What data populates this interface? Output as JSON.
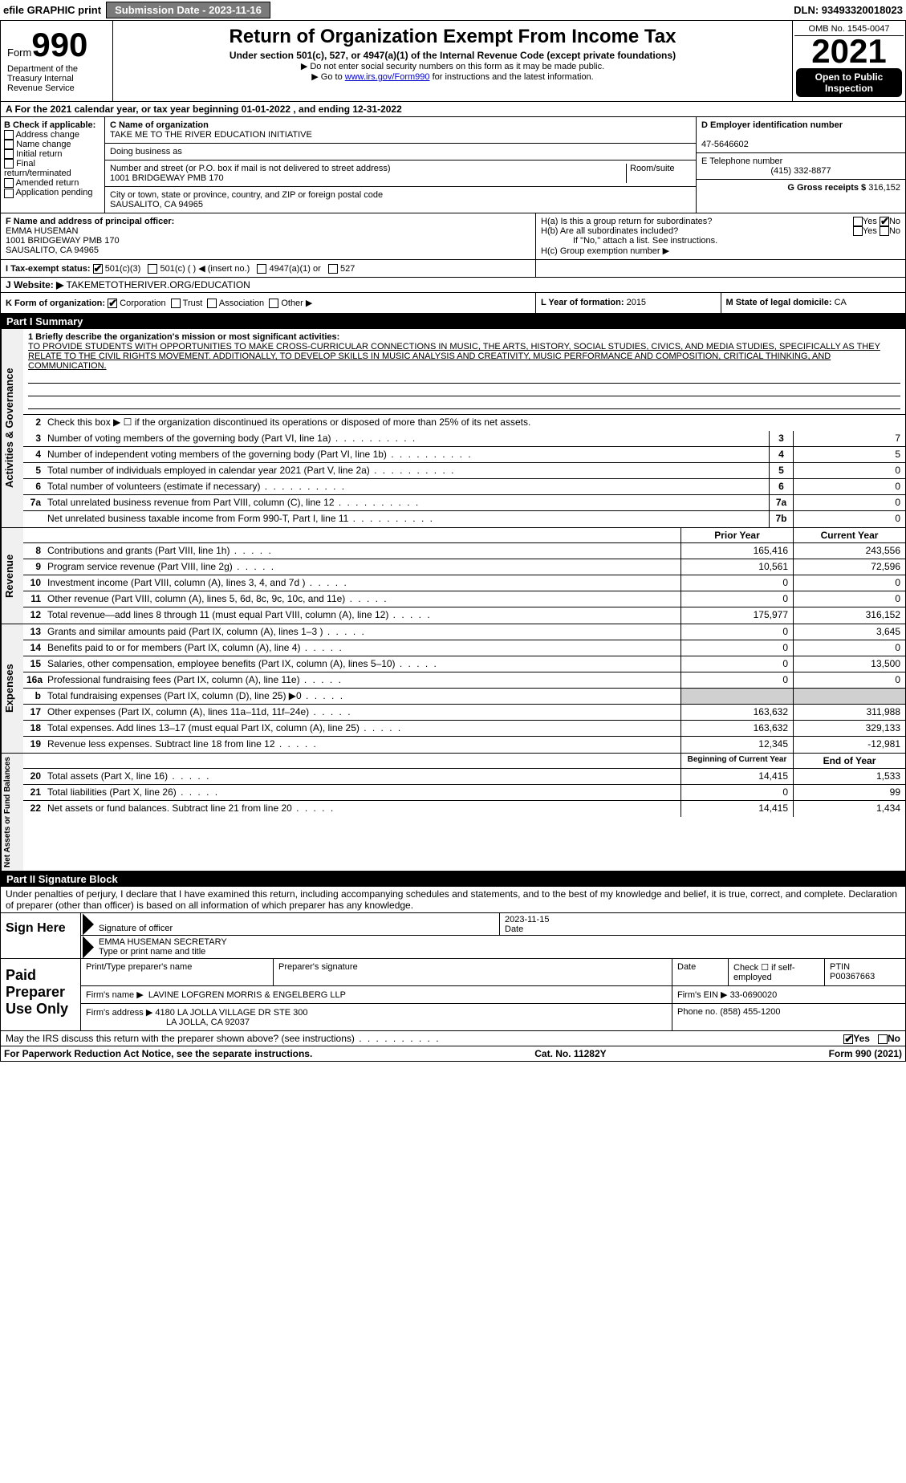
{
  "topbar": {
    "efile": "efile GRAPHIC print",
    "submission": "Submission Date - 2023-11-16",
    "dln": "DLN: 93493320018023"
  },
  "header": {
    "form_word": "Form",
    "form_num": "990",
    "title": "Return of Organization Exempt From Income Tax",
    "subtitle": "Under section 501(c), 527, or 4947(a)(1) of the Internal Revenue Code (except private foundations)",
    "note1": "▶ Do not enter social security numbers on this form as it may be made public.",
    "note2_pre": "▶ Go to ",
    "note2_link": "www.irs.gov/Form990",
    "note2_post": " for instructions and the latest information.",
    "dept": "Department of the Treasury\nInternal Revenue Service",
    "omb": "OMB No. 1545-0047",
    "year": "2021",
    "open": "Open to Public Inspection"
  },
  "rowA": "A For the 2021 calendar year, or tax year beginning 01-01-2022    , and ending 12-31-2022",
  "boxB": {
    "label": "B Check if applicable:",
    "items": [
      "Address change",
      "Name change",
      "Initial return",
      "Final return/terminated",
      "Amended return",
      "Application pending"
    ]
  },
  "boxC": {
    "label": "C Name of organization",
    "name": "TAKE ME TO THE RIVER EDUCATION INITIATIVE",
    "dba_label": "Doing business as",
    "addr_label": "Number and street (or P.O. box if mail is not delivered to street address)",
    "room_label": "Room/suite",
    "addr": "1001 BRIDGEWAY PMB 170",
    "city_label": "City or town, state or province, country, and ZIP or foreign postal code",
    "city": "SAUSALITO, CA  94965"
  },
  "boxD": {
    "label": "D Employer identification number",
    "val": "47-5646602"
  },
  "boxE": {
    "label": "E Telephone number",
    "val": "(415) 332-8877"
  },
  "boxG": {
    "label": "G Gross receipts $",
    "val": "316,152"
  },
  "boxF": {
    "label": "F Name and address of principal officer:",
    "name": "EMMA HUSEMAN",
    "addr1": "1001 BRIDGEWAY PMB 170",
    "addr2": "SAUSALITO, CA  94965"
  },
  "boxH": {
    "a": "H(a)  Is this a group return for subordinates?",
    "b": "H(b)  Are all subordinates included?",
    "b_note": "If \"No,\" attach a list. See instructions.",
    "c": "H(c)  Group exemption number ▶",
    "yes": "Yes",
    "no": "No"
  },
  "boxI": {
    "label": "I  Tax-exempt status:",
    "o1": "501(c)(3)",
    "o2": "501(c) (  ) ◀ (insert no.)",
    "o3": "4947(a)(1) or",
    "o4": "527"
  },
  "boxJ": {
    "label": "J  Website: ▶",
    "val": "TAKEMETOTHERIVER.ORG/EDUCATION"
  },
  "boxK": {
    "label": "K Form of organization:",
    "o1": "Corporation",
    "o2": "Trust",
    "o3": "Association",
    "o4": "Other ▶"
  },
  "boxL": {
    "label": "L Year of formation:",
    "val": "2015"
  },
  "boxM": {
    "label": "M State of legal domicile:",
    "val": "CA"
  },
  "part1": {
    "title": "Part I     Summary",
    "l1_label": "1  Briefly describe the organization's mission or most significant activities:",
    "l1_text": "TO PROVIDE STUDENTS WITH OPPORTUNITIES TO MAKE CROSS-CURRICULAR CONNECTIONS IN MUSIC, THE ARTS, HISTORY, SOCIAL STUDIES, CIVICS, AND MEDIA STUDIES, SPECIFICALLY AS THEY RELATE TO THE CIVIL RIGHTS MOVEMENT. ADDITIONALLY, TO DEVELOP SKILLS IN MUSIC ANALYSIS AND CREATIVITY, MUSIC PERFORMANCE AND COMPOSITION, CRITICAL THINKING, AND COMMUNICATION.",
    "l2": "Check this box ▶ ☐  if the organization discontinued its operations or disposed of more than 25% of its net assets.",
    "tab_gov": "Activities & Governance",
    "tab_rev": "Revenue",
    "tab_exp": "Expenses",
    "tab_net": "Net Assets or Fund Balances",
    "prior": "Prior Year",
    "current": "Current Year",
    "begin": "Beginning of Current Year",
    "end": "End of Year",
    "lines_gov": [
      {
        "n": "3",
        "d": "Number of voting members of the governing body (Part VI, line 1a)",
        "lab": "3",
        "v": "7"
      },
      {
        "n": "4",
        "d": "Number of independent voting members of the governing body (Part VI, line 1b)",
        "lab": "4",
        "v": "5"
      },
      {
        "n": "5",
        "d": "Total number of individuals employed in calendar year 2021 (Part V, line 2a)",
        "lab": "5",
        "v": "0"
      },
      {
        "n": "6",
        "d": "Total number of volunteers (estimate if necessary)",
        "lab": "6",
        "v": "0"
      },
      {
        "n": "7a",
        "d": "Total unrelated business revenue from Part VIII, column (C), line 12",
        "lab": "7a",
        "v": "0"
      },
      {
        "n": "",
        "d": "Net unrelated business taxable income from Form 990-T, Part I, line 11",
        "lab": "7b",
        "v": "0"
      }
    ],
    "lines_rev": [
      {
        "n": "8",
        "d": "Contributions and grants (Part VIII, line 1h)",
        "p": "165,416",
        "c": "243,556"
      },
      {
        "n": "9",
        "d": "Program service revenue (Part VIII, line 2g)",
        "p": "10,561",
        "c": "72,596"
      },
      {
        "n": "10",
        "d": "Investment income (Part VIII, column (A), lines 3, 4, and 7d )",
        "p": "0",
        "c": "0"
      },
      {
        "n": "11",
        "d": "Other revenue (Part VIII, column (A), lines 5, 6d, 8c, 9c, 10c, and 11e)",
        "p": "0",
        "c": "0"
      },
      {
        "n": "12",
        "d": "Total revenue—add lines 8 through 11 (must equal Part VIII, column (A), line 12)",
        "p": "175,977",
        "c": "316,152"
      }
    ],
    "lines_exp": [
      {
        "n": "13",
        "d": "Grants and similar amounts paid (Part IX, column (A), lines 1–3 )",
        "p": "0",
        "c": "3,645"
      },
      {
        "n": "14",
        "d": "Benefits paid to or for members (Part IX, column (A), line 4)",
        "p": "0",
        "c": "0"
      },
      {
        "n": "15",
        "d": "Salaries, other compensation, employee benefits (Part IX, column (A), lines 5–10)",
        "p": "0",
        "c": "13,500"
      },
      {
        "n": "16a",
        "d": "Professional fundraising fees (Part IX, column (A), line 11e)",
        "p": "0",
        "c": "0"
      },
      {
        "n": "b",
        "d": "Total fundraising expenses (Part IX, column (D), line 25) ▶0",
        "p": "",
        "c": "",
        "shade": true
      },
      {
        "n": "17",
        "d": "Other expenses (Part IX, column (A), lines 11a–11d, 11f–24e)",
        "p": "163,632",
        "c": "311,988"
      },
      {
        "n": "18",
        "d": "Total expenses. Add lines 13–17 (must equal Part IX, column (A), line 25)",
        "p": "163,632",
        "c": "329,133"
      },
      {
        "n": "19",
        "d": "Revenue less expenses. Subtract line 18 from line 12",
        "p": "12,345",
        "c": "-12,981"
      }
    ],
    "lines_net": [
      {
        "n": "20",
        "d": "Total assets (Part X, line 16)",
        "p": "14,415",
        "c": "1,533"
      },
      {
        "n": "21",
        "d": "Total liabilities (Part X, line 26)",
        "p": "0",
        "c": "99"
      },
      {
        "n": "22",
        "d": "Net assets or fund balances. Subtract line 21 from line 20",
        "p": "14,415",
        "c": "1,434"
      }
    ]
  },
  "part2": {
    "title": "Part II     Signature Block",
    "penalty": "Under penalties of perjury, I declare that I have examined this return, including accompanying schedules and statements, and to the best of my knowledge and belief, it is true, correct, and complete. Declaration of preparer (other than officer) is based on all information of which preparer has any knowledge.",
    "sign_here": "Sign Here",
    "sig_officer": "Signature of officer",
    "sig_date": "Date",
    "sig_date_val": "2023-11-15",
    "type_name": "EMMA HUSEMAN  SECRETARY",
    "type_label": "Type or print name and title",
    "paid": "Paid Preparer Use Only",
    "prep_name_label": "Print/Type preparer's name",
    "prep_sig_label": "Preparer's signature",
    "date_label": "Date",
    "check_label": "Check ☐ if self-employed",
    "ptin_label": "PTIN",
    "ptin": "P00367663",
    "firm_name_label": "Firm's name    ▶",
    "firm_name": "LAVINE LOFGREN MORRIS & ENGELBERG LLP",
    "firm_ein_label": "Firm's EIN ▶",
    "firm_ein": "33-0690020",
    "firm_addr_label": "Firm's address ▶",
    "firm_addr1": "4180 LA JOLLA VILLAGE DR STE 300",
    "firm_addr2": "LA JOLLA, CA  92037",
    "phone_label": "Phone no.",
    "phone": "(858) 455-1200",
    "discuss": "May the IRS discuss this return with the preparer shown above? (see instructions)",
    "yes": "Yes",
    "no": "No"
  },
  "footer": {
    "left": "For Paperwork Reduction Act Notice, see the separate instructions.",
    "mid": "Cat. No. 11282Y",
    "right": "Form 990 (2021)"
  }
}
